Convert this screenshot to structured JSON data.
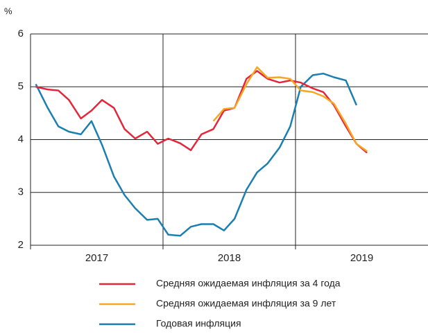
{
  "chart_data": {
    "type": "line",
    "y_label": "%",
    "x": [
      2017.04,
      2017.13,
      2017.21,
      2017.29,
      2017.38,
      2017.46,
      2017.54,
      2017.63,
      2017.71,
      2017.79,
      2017.88,
      2017.96,
      2018.04,
      2018.13,
      2018.21,
      2018.29,
      2018.38,
      2018.46,
      2018.54,
      2018.63,
      2018.71,
      2018.79,
      2018.88,
      2018.96,
      2019.04,
      2019.13,
      2019.21,
      2019.29,
      2019.38,
      2019.46,
      2019.54
    ],
    "xlim": [
      2017,
      2020
    ],
    "xticks": [
      2017,
      2018,
      2019
    ],
    "ylim": [
      2,
      6
    ],
    "yticks": [
      2,
      3,
      4,
      5,
      6
    ],
    "grid": true,
    "series": [
      {
        "name": "Средняя ожидаемая инфляция за 4 года",
        "color": "#e3263a",
        "values": [
          5.0,
          4.95,
          4.93,
          4.75,
          4.4,
          4.55,
          4.75,
          4.6,
          4.2,
          4.02,
          4.15,
          3.92,
          4.02,
          3.93,
          3.8,
          4.1,
          4.2,
          4.55,
          4.6,
          5.15,
          5.3,
          5.15,
          5.08,
          5.12,
          5.08,
          4.97,
          4.9,
          4.65,
          4.25,
          3.92,
          3.75
        ]
      },
      {
        "name": "Средняя ожидаемая инфляция за 9 лет",
        "color": "#f5a623",
        "values": [
          null,
          null,
          null,
          null,
          null,
          null,
          null,
          null,
          null,
          null,
          null,
          null,
          null,
          null,
          null,
          null,
          4.35,
          4.58,
          4.6,
          5.05,
          5.37,
          5.17,
          5.18,
          5.15,
          4.93,
          4.9,
          4.82,
          4.68,
          4.3,
          3.92,
          3.78
        ]
      },
      {
        "name": "Годовая инфляция",
        "color": "#1a7fb0",
        "values": [
          5.05,
          4.6,
          4.25,
          4.15,
          4.1,
          4.35,
          3.9,
          3.3,
          2.95,
          2.7,
          2.48,
          2.5,
          2.2,
          2.18,
          2.35,
          2.4,
          2.4,
          2.28,
          2.5,
          3.05,
          3.38,
          3.55,
          3.85,
          4.25,
          5.0,
          5.22,
          5.25,
          5.18,
          5.12,
          4.65,
          null
        ]
      }
    ]
  }
}
